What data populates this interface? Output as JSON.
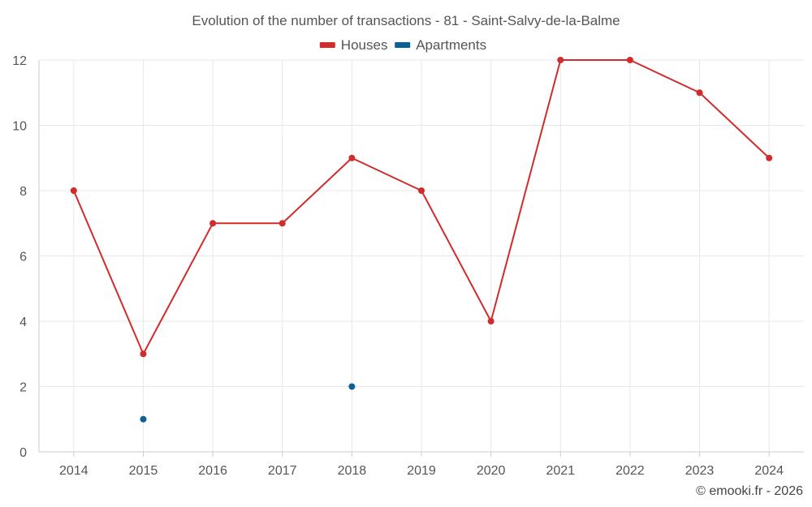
{
  "chart_data": {
    "type": "line",
    "title": "Evolution of the number of transactions - 81 - Saint-Salvy-de-la-Balme",
    "x": [
      "2014",
      "2015",
      "2016",
      "2017",
      "2018",
      "2019",
      "2020",
      "2021",
      "2022",
      "2023",
      "2024"
    ],
    "series": [
      {
        "name": "Houses",
        "color": "#d22b2b",
        "values": [
          8,
          3,
          7,
          7,
          9,
          8,
          4,
          12,
          12,
          11,
          9
        ]
      },
      {
        "name": "Apartments",
        "color": "#0b6196",
        "values": [
          null,
          1,
          null,
          null,
          2,
          null,
          null,
          null,
          null,
          null,
          null
        ]
      }
    ],
    "ylim": [
      0,
      12
    ],
    "yticks": [
      0,
      2,
      4,
      6,
      8,
      10,
      12
    ],
    "grid": true,
    "legend_position": "top-center",
    "xlabel": "",
    "ylabel": ""
  },
  "footer": "© emooki.fr - 2026"
}
